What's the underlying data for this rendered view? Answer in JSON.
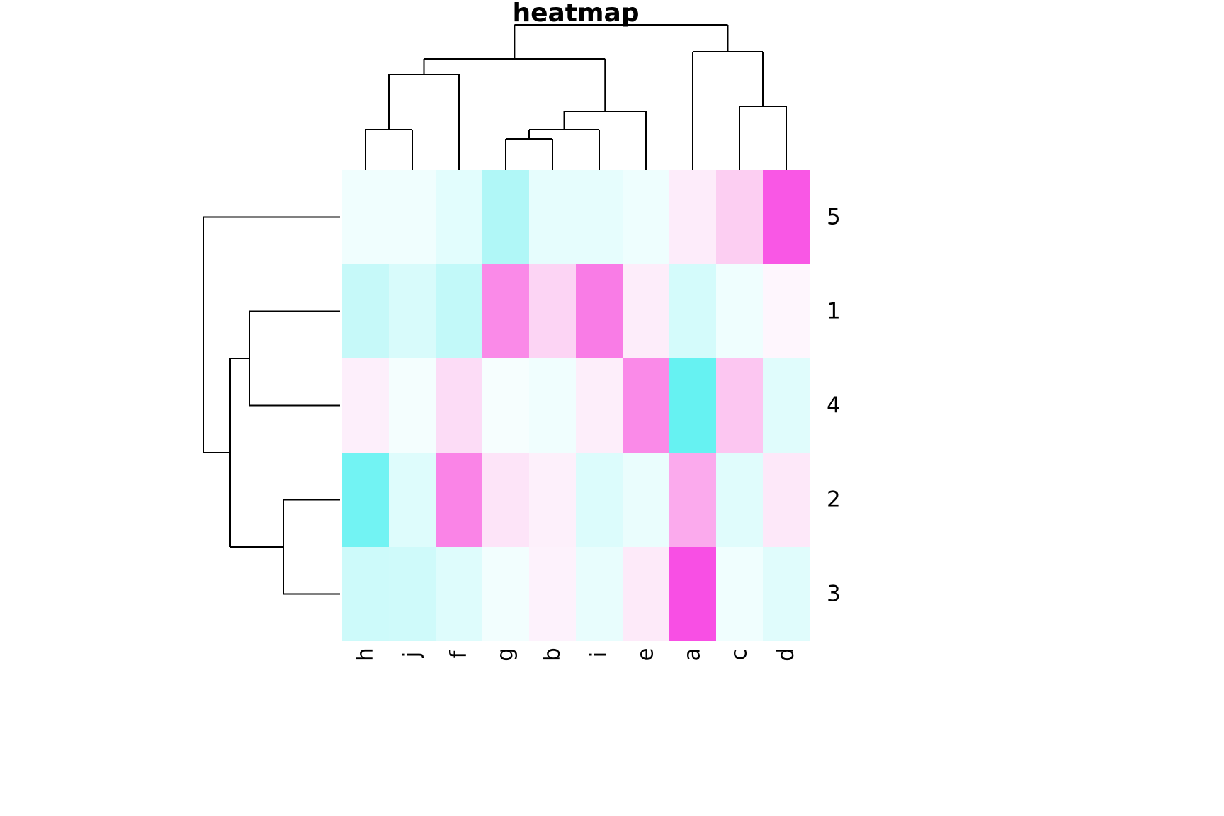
{
  "title": "heatmap",
  "chart_data": {
    "type": "heatmap",
    "title": "heatmap",
    "rows": [
      "5",
      "1",
      "4",
      "2",
      "3"
    ],
    "columns": [
      "h",
      "j",
      "f",
      "g",
      "b",
      "i",
      "e",
      "a",
      "c",
      "d"
    ],
    "color_scale": {
      "low": "#00ffff",
      "mid": "#ffffff",
      "high": "#ff00ff"
    },
    "cell_colors": [
      [
        "#f0fefe",
        "#f0fefe",
        "#e2fdfd",
        "#b0f7f7",
        "#e6fdfd",
        "#e6fdfd",
        "#eefefe",
        "#fdecfa",
        "#fccef2",
        "#f957e5"
      ],
      [
        "#c6f9f9",
        "#d8fbfb",
        "#c2f9f9",
        "#fa8ae8",
        "#fcd4f4",
        "#f97ce6",
        "#fdedfa",
        "#d4fbfb",
        "#effefe",
        "#fef6fd"
      ],
      [
        "#fdeffb",
        "#f4fefe",
        "#fcdcf6",
        "#f6fefe",
        "#f0fefe",
        "#fdeefa",
        "#fa8ae8",
        "#66f2f2",
        "#fcc6f1",
        "#e0fcfc"
      ],
      [
        "#72f3f3",
        "#defcfc",
        "#fa84e7",
        "#fde4f8",
        "#fdf0fb",
        "#dcfcfc",
        "#eafdfd",
        "#fbaaed",
        "#e0fcfc",
        "#fde8f9"
      ],
      [
        "#cdfafa",
        "#cffafa",
        "#defcfc",
        "#f2fefe",
        "#fdf2fc",
        "#e8fdfd",
        "#fdeaf9",
        "#f84fe4",
        "#f0fefe",
        "#e0fcfc"
      ]
    ],
    "col_dendrogram": {
      "leaves": [
        "h",
        "j",
        "f",
        "g",
        "b",
        "i",
        "e",
        "a",
        "c",
        "d"
      ],
      "merges": [
        [
          "L:h",
          "L:j",
          57
        ],
        [
          "M:0",
          "L:f",
          135
        ],
        [
          "L:g",
          "L:b",
          44
        ],
        [
          "M:2",
          "L:i",
          57
        ],
        [
          "M:3",
          "L:e",
          83
        ],
        [
          "M:1",
          "M:4",
          157
        ],
        [
          "L:c",
          "L:d",
          90
        ],
        [
          "L:a",
          "M:6",
          167
        ],
        [
          "M:5",
          "M:7",
          205
        ]
      ]
    },
    "row_dendrogram": {
      "leaves": [
        "5",
        "1",
        "4",
        "2",
        "3"
      ],
      "merges": [
        [
          "L:1",
          "L:4",
          128
        ],
        [
          "L:2",
          "L:3",
          80
        ],
        [
          "M:0",
          "M:1",
          155
        ],
        [
          "L:5",
          "M:2",
          193
        ]
      ]
    }
  }
}
